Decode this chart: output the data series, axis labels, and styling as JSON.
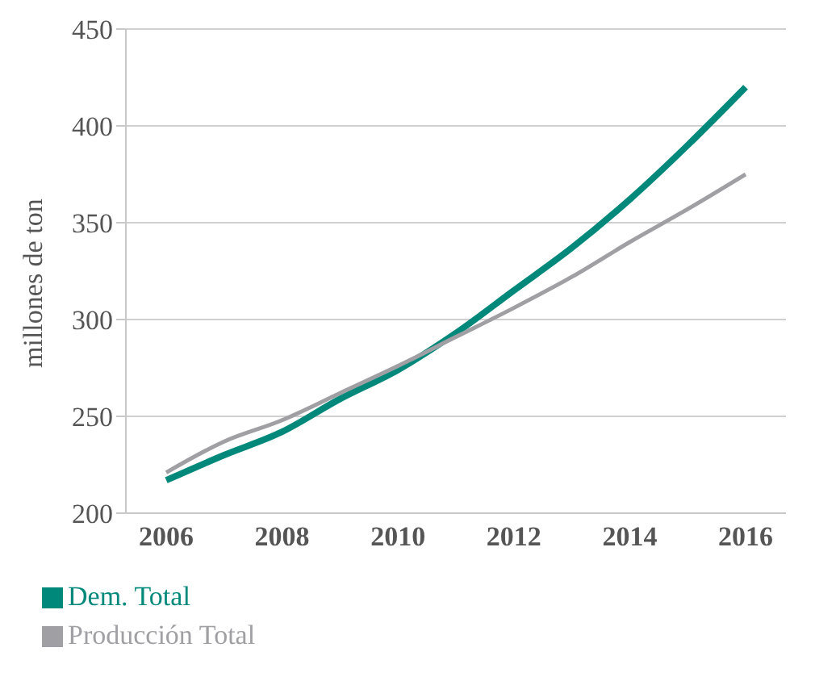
{
  "chart_data": {
    "type": "line",
    "ylabel": "millones de ton",
    "categories": [
      "2006",
      null,
      "2008",
      null,
      "2010",
      null,
      "2012",
      null,
      "2014",
      null,
      "2016"
    ],
    "series": [
      {
        "name": "Dem. Total",
        "color": "#00897b",
        "values": [
          217,
          230,
          242,
          259,
          274,
          293,
          315,
          337,
          362,
          390,
          420
        ]
      },
      {
        "name": "Producción Total",
        "color": "#a0a0a4",
        "values": [
          221,
          237,
          248,
          262,
          276,
          291,
          306,
          322,
          340,
          357,
          375
        ]
      }
    ],
    "ylim": [
      200,
      450
    ],
    "yticks": [
      200,
      250,
      300,
      350,
      400,
      450
    ],
    "grid": "y",
    "legend": "bottom",
    "marker": "none",
    "line_style": "solid"
  }
}
